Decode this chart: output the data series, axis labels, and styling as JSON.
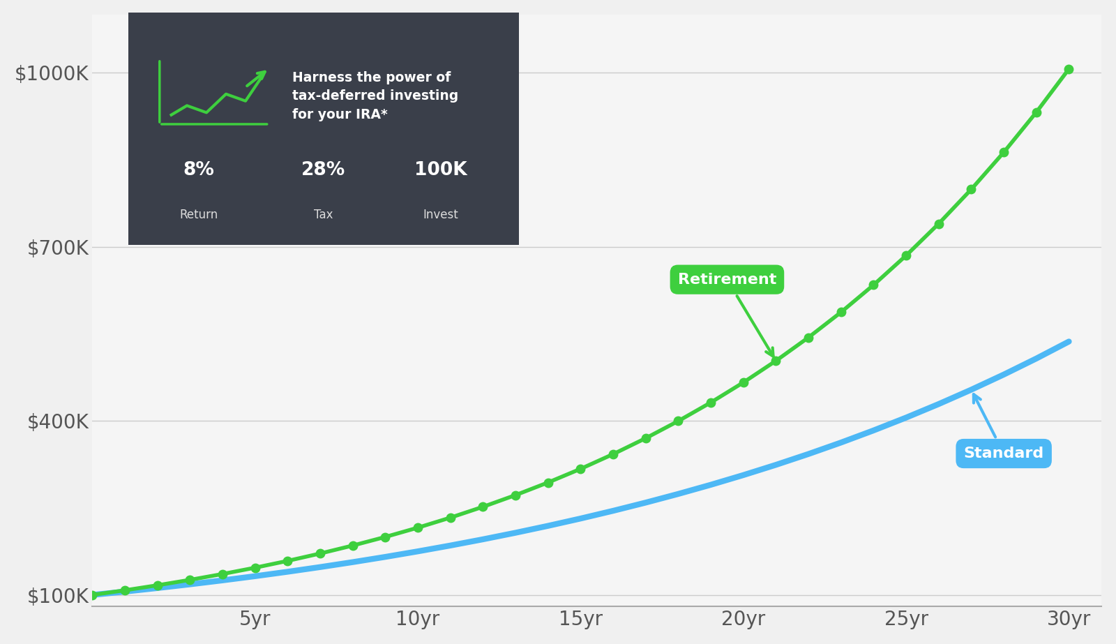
{
  "initial_investment": 100000,
  "annual_return": 0.08,
  "tax_rate": 0.28,
  "years": 30,
  "bg_color": "#f0f0f0",
  "plot_bg_color": "#f5f5f5",
  "green_color": "#3ecf3e",
  "green_dark": "#2db82d",
  "blue_color": "#4db8f5",
  "blue_dark": "#2196f3",
  "panel_bg": "#3a3f4a",
  "panel_text_light": "#dddddd",
  "panel_text_white": "#ffffff",
  "yticks": [
    100000,
    400000,
    700000,
    1000000
  ],
  "ytick_labels": [
    "$100K",
    "$400K",
    "$700K",
    "$1000K"
  ],
  "xticks": [
    5,
    10,
    15,
    20,
    25,
    30
  ],
  "xtick_labels": [
    "5yr",
    "10yr",
    "15yr",
    "20yr",
    "25yr",
    "30yr"
  ],
  "retirement_label": "Retirement",
  "standard_label": "Standard",
  "panel_title": "Harness the power of\ntax-deferred investing\nfor your IRA*",
  "panel_return_val": "8%",
  "panel_return_label": "Return",
  "panel_tax_val": "28%",
  "panel_tax_label": "Tax",
  "panel_invest_val": "100K",
  "panel_invest_label": "Invest"
}
